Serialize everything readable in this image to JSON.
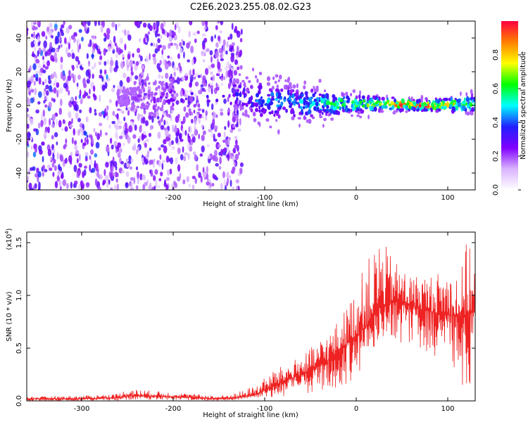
{
  "title": "C2E6.2023.255.08.02.G23",
  "chart_data": [
    {
      "type": "heatmap",
      "xlabel": "Height of straight line (km)",
      "ylabel": "Frequency (Hz)",
      "xlim": [
        -360,
        130
      ],
      "ylim": [
        -50,
        50
      ],
      "x_ticks": [
        -300,
        -200,
        -100,
        0,
        100
      ],
      "x_tick_labels": [
        "-300",
        "-200",
        "-100",
        "0",
        "100"
      ],
      "y_ticks": [
        -40,
        -20,
        0,
        20,
        40
      ],
      "y_tick_labels": [
        "-40",
        "-20",
        "0",
        "20",
        "40"
      ],
      "colorbar": {
        "label": "Normalized spectral amplitude",
        "range": [
          0,
          1
        ],
        "ticks": [
          0.0,
          0.2,
          0.4,
          0.6,
          0.8
        ],
        "tick_labels": [
          "0.0",
          "0.2",
          "0.4",
          "0.6",
          "0.8"
        ],
        "colors": [
          "#ffffff",
          "#d9b3ff",
          "#8000ff",
          "#2020ff",
          "#00ffff",
          "#00ff00",
          "#ffff00",
          "#ff8000",
          "#ff0040"
        ]
      },
      "noise_region": {
        "x_range": [
          -360,
          -125
        ],
        "freq_range": [
          -50,
          50
        ],
        "level": 0.15
      },
      "signal_track": [
        {
          "x": -250,
          "center": 4,
          "spread": 4,
          "amplitude": 0.2
        },
        {
          "x": -225,
          "center": 5,
          "spread": 7,
          "amplitude": 0.25
        },
        {
          "x": -125,
          "center": 6,
          "spread": 8,
          "amplitude": 0.35
        },
        {
          "x": -100,
          "center": 3,
          "spread": 9,
          "amplitude": 0.45
        },
        {
          "x": -75,
          "center": 2,
          "spread": 8,
          "amplitude": 0.45
        },
        {
          "x": -50,
          "center": 1,
          "spread": 7,
          "amplitude": 0.5
        },
        {
          "x": -25,
          "center": 1,
          "spread": 5,
          "amplitude": 0.6
        },
        {
          "x": 0,
          "center": 1,
          "spread": 4,
          "amplitude": 0.65
        },
        {
          "x": 25,
          "center": 1,
          "spread": 3,
          "amplitude": 0.75
        },
        {
          "x": 50,
          "center": 0.5,
          "spread": 2.5,
          "amplitude": 0.9
        },
        {
          "x": 75,
          "center": 0,
          "spread": 2,
          "amplitude": 0.95
        },
        {
          "x": 100,
          "center": 0.5,
          "spread": 3,
          "amplitude": 0.8
        },
        {
          "x": 130,
          "center": 1,
          "spread": 4,
          "amplitude": 0.6
        }
      ]
    },
    {
      "type": "line",
      "xlabel": "Height of straight line (km)",
      "ylabel": "SNR (10 * v/v)",
      "y_multiplier": "(x10",
      "y_multiplier_exp": "4",
      "y_multiplier_close": ")",
      "xlim": [
        -360,
        130
      ],
      "ylim": [
        0,
        1.6
      ],
      "x_ticks": [
        -300,
        -200,
        -100,
        0,
        100
      ],
      "x_tick_labels": [
        "-300",
        "-200",
        "-100",
        "0",
        "100"
      ],
      "y_ticks": [
        0.0,
        0.5,
        1.0,
        1.5
      ],
      "y_tick_labels": [
        "0.0",
        "0.5",
        "1.0",
        "1.5"
      ],
      "line_color": "#ee2222",
      "envelope": {
        "x": [
          -360,
          -300,
          -260,
          -250,
          -200,
          -150,
          -130,
          -110,
          -100,
          -90,
          -75,
          -50,
          -25,
          -10,
          0,
          10,
          20,
          25,
          40,
          60,
          80,
          100,
          115,
          120,
          130
        ],
        "mean": [
          0.02,
          0.02,
          0.03,
          0.05,
          0.04,
          0.02,
          0.03,
          0.06,
          0.1,
          0.14,
          0.2,
          0.28,
          0.42,
          0.55,
          0.62,
          0.7,
          0.82,
          0.88,
          0.95,
          0.9,
          0.85,
          0.82,
          0.78,
          0.8,
          0.9
        ],
        "peak": [
          0.04,
          0.05,
          0.07,
          0.12,
          0.08,
          0.05,
          0.08,
          0.15,
          0.22,
          0.3,
          0.35,
          0.5,
          0.7,
          0.9,
          1.1,
          1.3,
          1.45,
          1.58,
          1.35,
          1.2,
          1.2,
          1.25,
          1.25,
          1.55,
          1.3
        ],
        "floor": [
          0.0,
          0.0,
          0.0,
          0.01,
          0.01,
          0.0,
          0.01,
          0.02,
          0.02,
          0.03,
          0.04,
          0.06,
          0.1,
          0.15,
          0.25,
          0.35,
          0.5,
          0.55,
          0.55,
          0.55,
          0.45,
          0.35,
          0.1,
          0.05,
          0.3
        ]
      }
    }
  ]
}
